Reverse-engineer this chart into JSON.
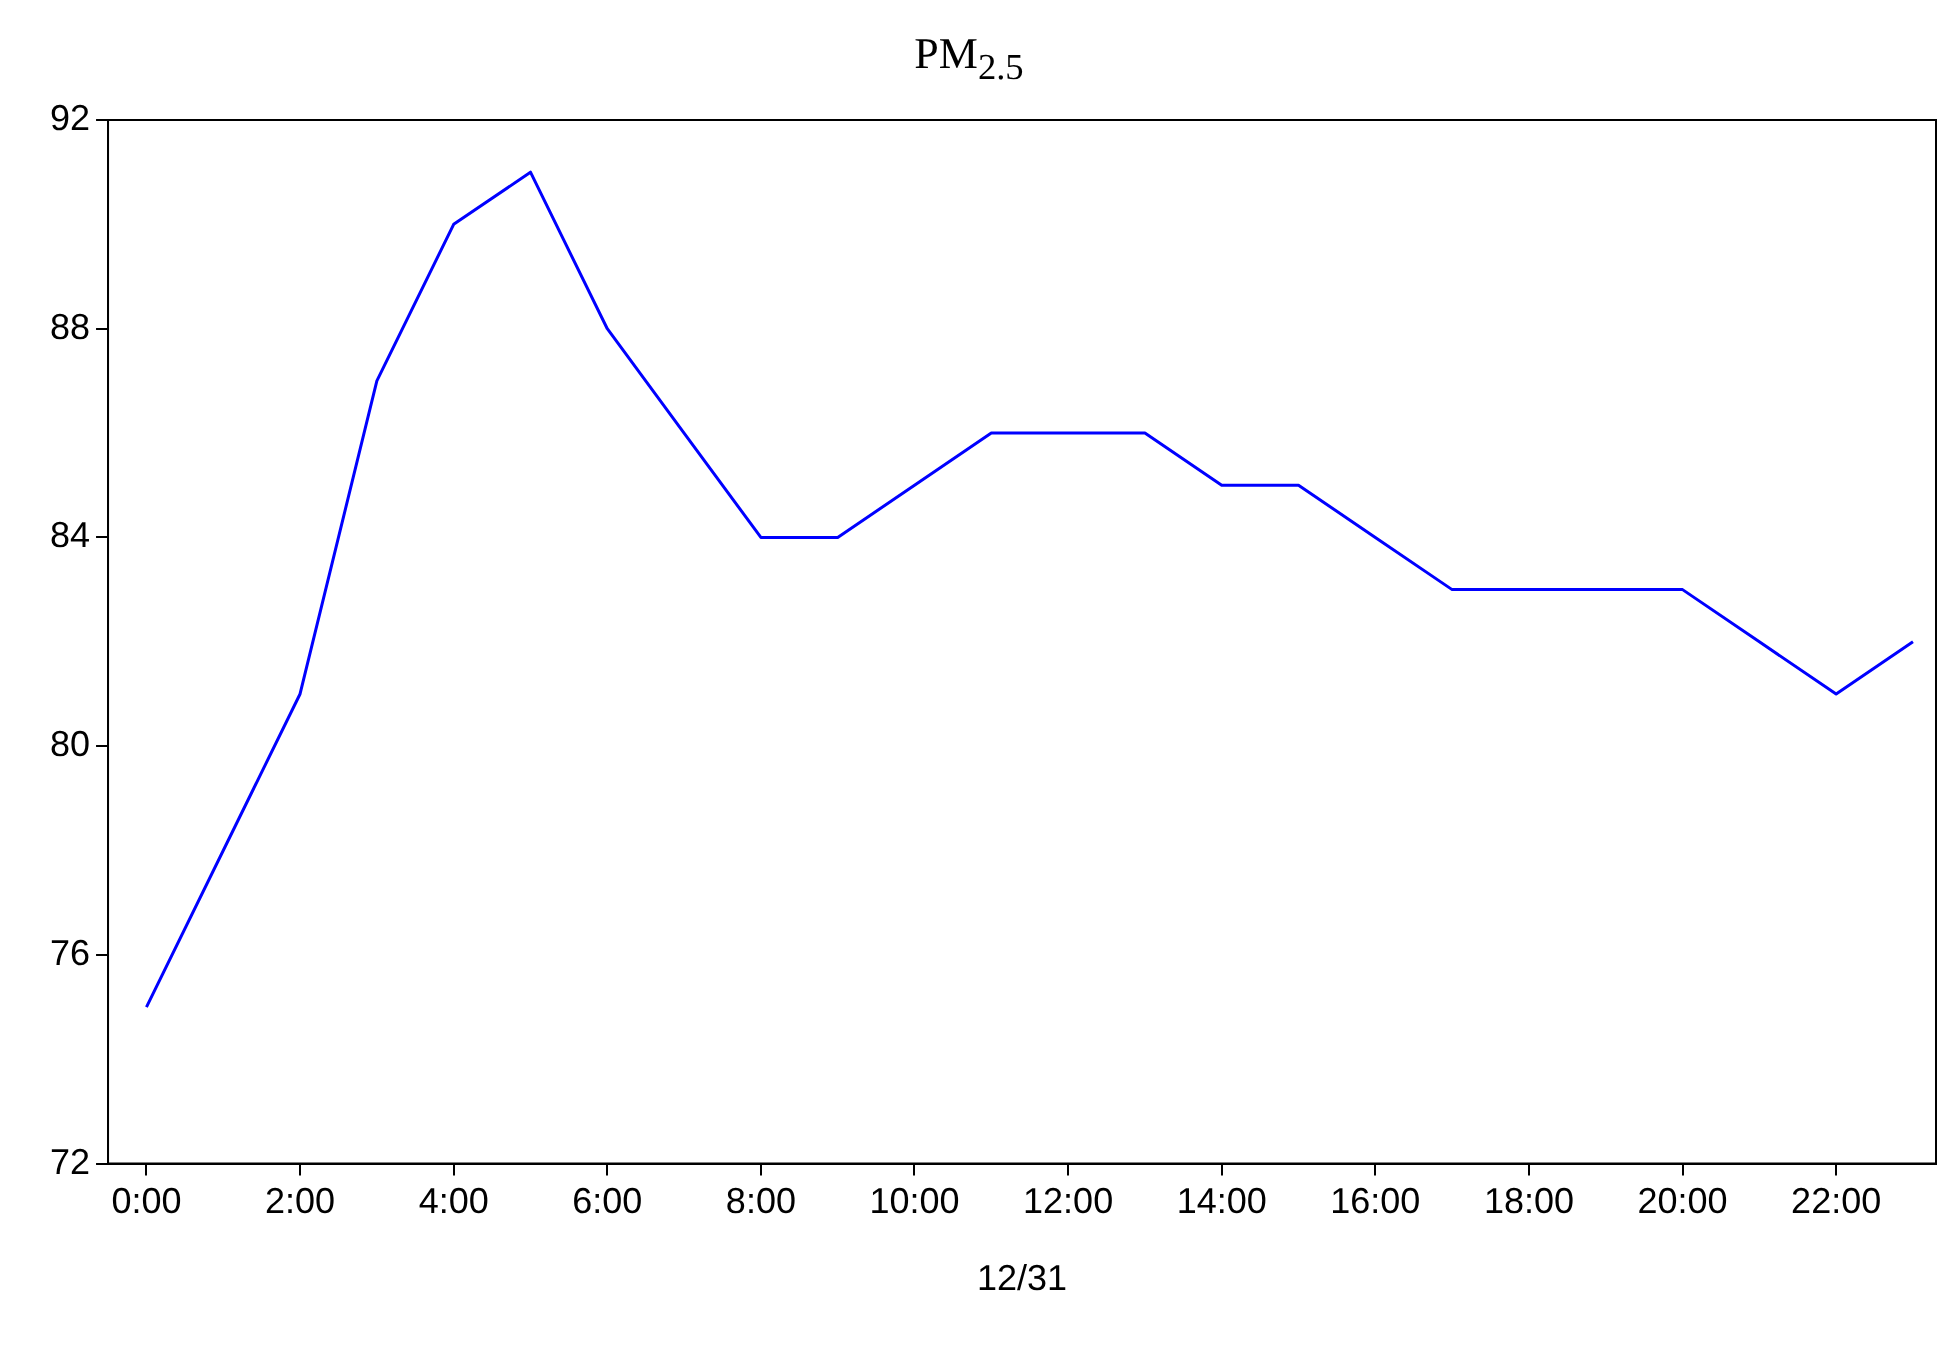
{
  "chart_data": {
    "type": "line",
    "title": "PM$_{2.5}$",
    "xlabel": "12/31",
    "x": [
      0,
      1,
      2,
      3,
      4,
      5,
      6,
      7,
      8,
      9,
      10,
      11,
      12,
      13,
      14,
      15,
      16,
      17,
      18,
      19,
      20,
      21,
      22,
      23
    ],
    "series": [
      {
        "color": "#0000ff",
        "values": [
          75,
          78,
          81,
          87,
          90,
          91,
          88,
          86,
          84,
          84,
          85,
          86,
          86,
          86,
          85,
          85,
          84,
          83,
          83,
          83,
          83,
          82,
          81,
          82
        ]
      }
    ],
    "xlim": [
      -0.5,
      23.3
    ],
    "xticks": [
      {
        "value": 0,
        "label": "0:00"
      },
      {
        "value": 2,
        "label": "2:00"
      },
      {
        "value": 4,
        "label": "4:00"
      },
      {
        "value": 6,
        "label": "6:00"
      },
      {
        "value": 8,
        "label": "8:00"
      },
      {
        "value": 10,
        "label": "10:00"
      },
      {
        "value": 12,
        "label": "12:00"
      },
      {
        "value": 14,
        "label": "14:00"
      },
      {
        "value": 16,
        "label": "16:00"
      },
      {
        "value": 18,
        "label": "18:00"
      },
      {
        "value": 20,
        "label": "20:00"
      },
      {
        "value": 22,
        "label": "22:00"
      }
    ],
    "ylim": [
      72,
      92
    ],
    "yticks": [
      72,
      76,
      80,
      84,
      88,
      92
    ],
    "grid": false,
    "legend": false,
    "marker": "none",
    "line_style": "solid"
  }
}
